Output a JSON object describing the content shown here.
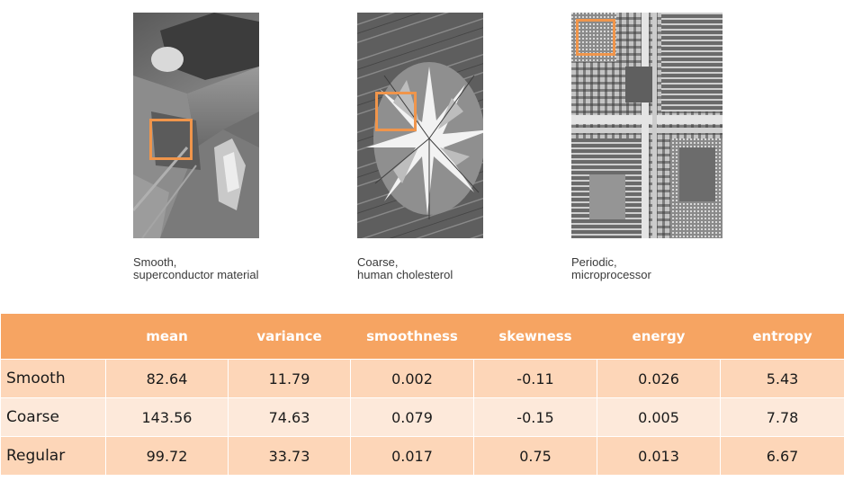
{
  "figures": [
    {
      "caption_line1": "Smooth,",
      "caption_line2": "superconductor material",
      "texture": "smooth"
    },
    {
      "caption_line1": "Coarse,",
      "caption_line2": "human cholesterol",
      "texture": "coarse"
    },
    {
      "caption_line1": "Periodic,",
      "caption_line2": "microprocessor",
      "texture": "periodic"
    }
  ],
  "colors": {
    "roi": "#f0954b",
    "header_bg": "#f6a462",
    "row_dark": "#fdd6b8",
    "row_light": "#fde9da"
  },
  "table": {
    "columns": [
      "",
      "mean",
      "variance",
      "smoothness",
      "skewness",
      "energy",
      "entropy"
    ],
    "rows": [
      {
        "label": "Smooth",
        "values": [
          "82.64",
          "11.79",
          "0.002",
          "-0.11",
          "0.026",
          "5.43"
        ]
      },
      {
        "label": "Coarse",
        "values": [
          "143.56",
          "74.63",
          "0.079",
          "-0.15",
          "0.005",
          "7.78"
        ]
      },
      {
        "label": "Regular",
        "values": [
          "99.72",
          "33.73",
          "0.017",
          "0.75",
          "0.013",
          "6.67"
        ]
      }
    ]
  }
}
